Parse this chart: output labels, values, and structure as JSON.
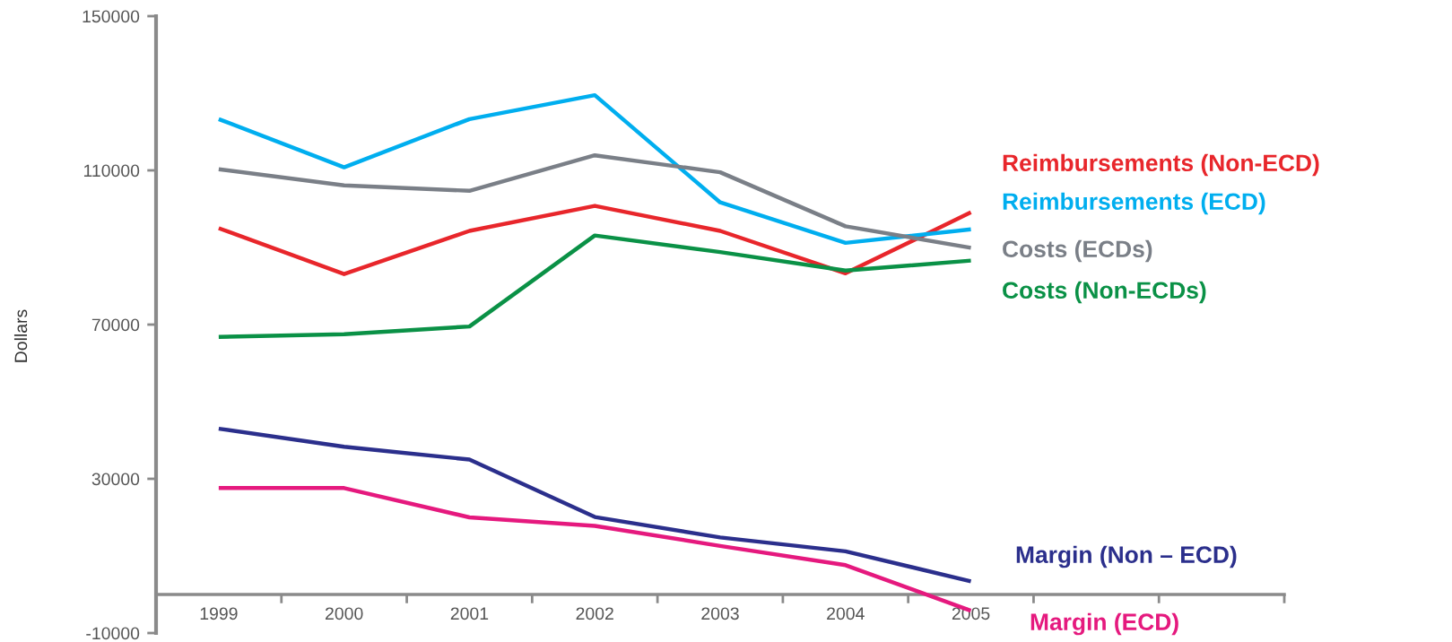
{
  "chart_data": {
    "type": "line",
    "ylabel": "Dollars",
    "categories": [
      "1999",
      "2000",
      "2001",
      "2002",
      "2003",
      "2004",
      "2005",
      null,
      null
    ],
    "series": [
      {
        "name": "Reimbursements (Non-ECD)",
        "color": "#e8262b",
        "values": [
          95000,
          83100,
          94300,
          100800,
          94300,
          83300,
          99100,
          null,
          null
        ]
      },
      {
        "name": "Reimbursements (ECD)",
        "color": "#00aeef",
        "values": [
          123300,
          110800,
          123300,
          129500,
          101700,
          91200,
          94700,
          null,
          null
        ]
      },
      {
        "name": "Costs (ECDs)",
        "color": "#7a7f87",
        "values": [
          110300,
          106100,
          104700,
          113900,
          109500,
          95500,
          89900,
          null,
          null
        ]
      },
      {
        "name": "Costs (Non-ECDs)",
        "color": "#0a9146",
        "values": [
          66800,
          67500,
          69500,
          93100,
          88800,
          84000,
          86600,
          null,
          null
        ]
      },
      {
        "name": "Margin (Non – ECD)",
        "color": "#2b2f8c",
        "values": [
          43000,
          38300,
          35000,
          20100,
          14800,
          11200,
          3400,
          null,
          null
        ]
      },
      {
        "name": "Margin (ECD)",
        "color": "#e5197e",
        "values": [
          27600,
          27600,
          20000,
          17800,
          12600,
          7600,
          -4200,
          null,
          null
        ]
      }
    ],
    "ylim": [
      -10000,
      150000
    ],
    "yticks": [
      -10000,
      30000,
      70000,
      110000,
      150000
    ],
    "grid": false,
    "line_style": "solid",
    "marker": "none"
  }
}
